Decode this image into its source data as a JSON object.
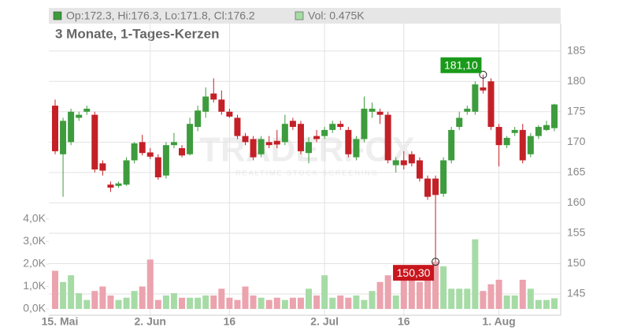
{
  "chart_data": {
    "type": "candlestick",
    "subtitle": "3 Monate, 1-Tages-Kerzen",
    "legend": {
      "price": "Op:172.3, Hi:176.3, Lo:171.8, Cl:176.2",
      "volume": "Vol: 0.475K"
    },
    "watermark": {
      "brand": "TRADERFOX",
      "tagline": "REALTIME STOCK SCREENING"
    },
    "categories": [
      "15. Mai",
      null,
      null,
      null,
      null,
      null,
      null,
      null,
      null,
      null,
      null,
      null,
      "2. Jun",
      null,
      null,
      null,
      null,
      null,
      null,
      null,
      null,
      null,
      "16",
      null,
      null,
      null,
      null,
      null,
      null,
      null,
      null,
      null,
      null,
      null,
      "2. Jul",
      null,
      null,
      null,
      null,
      null,
      null,
      null,
      null,
      null,
      "16",
      null,
      null,
      null,
      null,
      null,
      null,
      null,
      null,
      null,
      null,
      null,
      "1. Aug",
      null,
      null,
      null,
      null,
      null,
      null,
      null
    ],
    "open": [
      176,
      168,
      170,
      174,
      175,
      174.5,
      166.5,
      163,
      162.8,
      163,
      167,
      170,
      168.3,
      167.5,
      164.5,
      169.5,
      169,
      168,
      172.5,
      175,
      178,
      177,
      175,
      174,
      171,
      170.5,
      168,
      170,
      170.2,
      170,
      173.5,
      173,
      168.2,
      171,
      171,
      172,
      173,
      172,
      167.5,
      170.5,
      175,
      175,
      174.5,
      166.2,
      167,
      168,
      167,
      164,
      164,
      161.5,
      167,
      172.5,
      175,
      175,
      179,
      180,
      172.5,
      169.5,
      171.5,
      172,
      168,
      171,
      172,
      172.3
    ],
    "high": [
      177,
      174,
      175.5,
      175,
      176,
      175,
      167,
      163.5,
      163.5,
      167.5,
      170,
      171.2,
      169,
      168,
      170,
      171.5,
      169.5,
      174,
      176,
      179,
      180.5,
      178.5,
      175.5,
      174.5,
      171.5,
      171,
      171,
      171,
      172,
      174.5,
      174,
      173.5,
      170.8,
      172,
      172.5,
      173.5,
      173.5,
      172.5,
      171,
      177.5,
      176.5,
      175.5,
      175,
      167.5,
      168.5,
      168.5,
      167.5,
      164.5,
      164.5,
      167.5,
      172.5,
      175,
      176,
      180,
      181.1,
      180.5,
      173,
      171,
      172.5,
      173,
      171.5,
      172.8,
      173.5,
      176.3
    ],
    "low": [
      168,
      161,
      169.5,
      173.5,
      174.5,
      165,
      164.5,
      161.8,
      162.5,
      162.8,
      166.5,
      167.8,
      167.2,
      163.8,
      164,
      169,
      167.5,
      167.8,
      171.8,
      174,
      176.5,
      174.5,
      174,
      170.5,
      169.5,
      167,
      167.5,
      169,
      169,
      169.5,
      172,
      168,
      166.5,
      170,
      170.5,
      171.5,
      172,
      167.5,
      167,
      170,
      174,
      173,
      166.5,
      165,
      165.5,
      166,
      163.5,
      160.5,
      150.3,
      161,
      166.5,
      172,
      174.5,
      174.5,
      178,
      172,
      166,
      169,
      171,
      166.5,
      167.5,
      170.5,
      171.8,
      171.8
    ],
    "close": [
      168.5,
      173.5,
      175,
      174.5,
      175.5,
      165.5,
      165.3,
      162.5,
      163.2,
      167,
      169.8,
      168.2,
      167.6,
      164.2,
      169.5,
      170,
      167.8,
      173,
      175.2,
      177.5,
      177,
      175,
      174.2,
      171,
      170,
      167.5,
      170.5,
      169.5,
      169.6,
      173,
      172.5,
      168.5,
      170,
      170.5,
      172,
      173,
      172.5,
      168,
      170.5,
      175.5,
      175.5,
      174.5,
      167,
      167,
      166.2,
      166.5,
      164,
      161,
      161.3,
      167,
      172,
      174,
      175.5,
      179.5,
      178.5,
      172.5,
      169.5,
      170.7,
      172,
      167,
      171,
      172.5,
      172.8,
      176.2
    ],
    "volume": [
      1.7,
      1.2,
      1.5,
      0.7,
      0.4,
      0.8,
      1.0,
      0.6,
      0.4,
      0.5,
      0.8,
      1.0,
      2.2,
      0.4,
      0.6,
      0.7,
      0.5,
      0.5,
      0.5,
      0.6,
      0.6,
      0.9,
      0.5,
      0.4,
      1.0,
      0.6,
      0.5,
      0.4,
      0.5,
      0.4,
      0.5,
      0.5,
      0.9,
      0.6,
      1.5,
      0.5,
      0.6,
      0.5,
      0.6,
      0.4,
      0.8,
      1.2,
      1.5,
      0.6,
      1.5,
      1.3,
      1.2,
      1.6,
      2.1,
      1.9,
      0.9,
      0.9,
      0.9,
      3.1,
      0.8,
      1.1,
      1.3,
      0.6,
      0.6,
      1.3,
      0.9,
      0.4,
      0.4,
      0.475
    ],
    "up_color": "#3d9c3d",
    "down_color": "#c42027",
    "up_volume_color": "#a6dba6",
    "down_volume_color": "#eba3ae",
    "ylim": [
      141.5,
      189.5
    ],
    "yticks": [
      145,
      150,
      155,
      160,
      165,
      170,
      175,
      180,
      185
    ],
    "y2lim": [
      -0.28,
      12.7
    ],
    "y2ticks": [
      {
        "value": 0,
        "label": "0,0K"
      },
      {
        "value": 1,
        "label": "1,0K"
      },
      {
        "value": 2,
        "label": "2,0K"
      },
      {
        "value": 3,
        "label": "3,0K"
      },
      {
        "value": 4,
        "label": "4,0K"
      }
    ],
    "annotations": [
      {
        "label": "181,10",
        "value": 181.1,
        "color": "#1a9a1a"
      },
      {
        "label": "150,30",
        "value": 150.3,
        "color": "#c8161d"
      }
    ],
    "grid": true
  }
}
